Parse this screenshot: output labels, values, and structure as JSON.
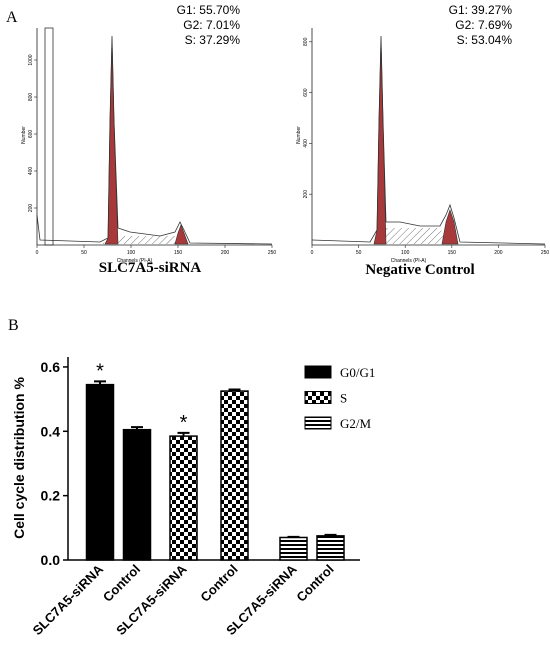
{
  "panel_a": {
    "label": "A",
    "histograms": [
      {
        "stats": [
          "G1: 55.70%",
          "G2:   7.01%",
          "S: 37.29%"
        ],
        "title": "SLC7A5-siRNA",
        "xlabel": "Channels (PI-A)",
        "ylabel": "Number",
        "xticks": [
          0,
          50,
          100,
          150,
          200,
          250
        ],
        "yticks": [
          200,
          400,
          600,
          800,
          1000
        ]
      },
      {
        "stats": [
          "G1: 39.27%",
          "G2:   7.69%",
          "S: 53.04%"
        ],
        "title": "Negative Control",
        "xlabel": "Channels (PI-A)",
        "ylabel": "Number",
        "xticks": [
          0,
          50,
          100,
          150,
          200,
          250
        ],
        "yticks": [
          200,
          400,
          600,
          800
        ]
      }
    ]
  },
  "chart_data": {
    "type": "bar",
    "panel_label": "B",
    "ylabel": "Cell cycle distribution %",
    "categories": [
      "SLC7A5-siRNA",
      "Control",
      "SLC7A5-siRNA",
      "Control",
      "SLC7A5-siRNA",
      "Control"
    ],
    "series": [
      {
        "name": "G0/G1",
        "color": "#000000",
        "pattern": "solid",
        "values": [
          0.545,
          0.405,
          null,
          null,
          null,
          null
        ],
        "errors": [
          0.01,
          0.008,
          null,
          null,
          null,
          null
        ]
      },
      {
        "name": "S",
        "color": "#000000",
        "pattern": "checker",
        "values": [
          null,
          null,
          0.385,
          0.525,
          null,
          null
        ],
        "errors": [
          null,
          null,
          0.01,
          0.005,
          null,
          null
        ]
      },
      {
        "name": "G2/M",
        "color": "#000000",
        "pattern": "stripes",
        "values": [
          null,
          null,
          null,
          null,
          0.07,
          0.075
        ],
        "errors": [
          null,
          null,
          null,
          null,
          0.002,
          0.003
        ]
      }
    ],
    "annotations": [
      "*",
      null,
      "*",
      null,
      null,
      null
    ],
    "ylim": [
      0,
      0.62
    ],
    "yticks": [
      {
        "value": 0,
        "label": "0.0"
      },
      0.2,
      0.4,
      0.6
    ]
  }
}
